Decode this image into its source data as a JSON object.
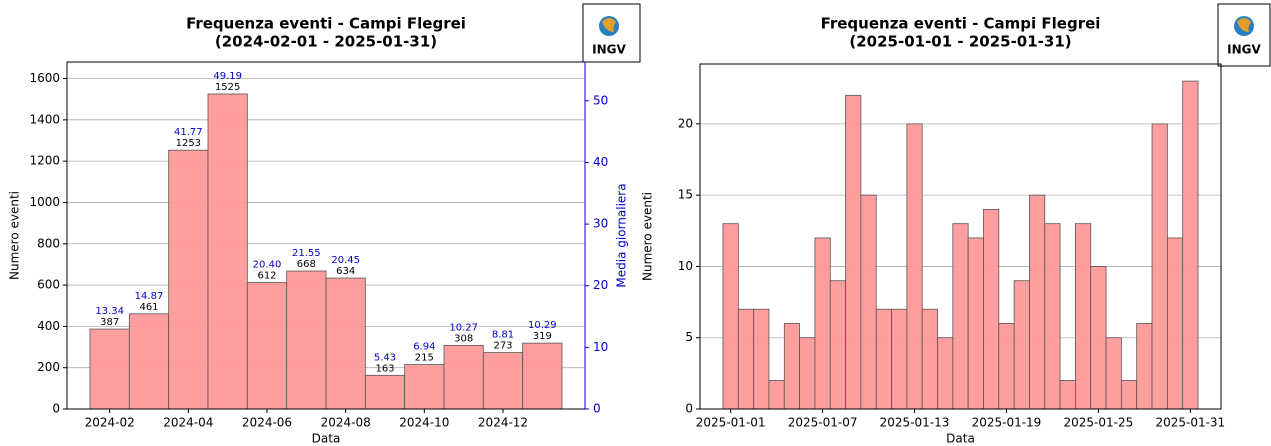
{
  "chart_data": [
    {
      "type": "bar",
      "title": [
        "Frequenza eventi - Campi Flegrei",
        "(2024-02-01 - 2025-01-31)"
      ],
      "logo_text": "INGV",
      "xlabel": "Data",
      "ylabel": "Numero eventi",
      "y2label": "Media giornaliera",
      "categories": [
        "2024-02",
        null,
        "2024-04",
        null,
        "2024-06",
        null,
        "2024-08",
        null,
        "2024-10",
        null,
        "2024-12",
        null
      ],
      "values": [
        387,
        461,
        1253,
        1525,
        612,
        668,
        634,
        163,
        215,
        308,
        273,
        319
      ],
      "daily_values": [
        13.34,
        14.87,
        41.77,
        49.19,
        20.4,
        21.55,
        20.45,
        5.43,
        6.94,
        10.27,
        8.81,
        10.29
      ],
      "daily_value_labels": [
        "13.34",
        "14.87",
        "41.77",
        "49.19",
        "20.40",
        "21.55",
        "20.45",
        "5.43",
        "6.94",
        "10.27",
        "8.81",
        "10.29"
      ],
      "color": "#ff9999",
      "label_color": "#0000cc",
      "ylim": [
        0,
        1680
      ],
      "yticks": [
        0,
        200,
        400,
        600,
        800,
        1000,
        1200,
        1400,
        1600
      ],
      "y2lim": [
        0,
        56.3
      ],
      "y2ticks": [
        0,
        10,
        20,
        30,
        40,
        50
      ],
      "grid": true
    },
    {
      "type": "bar",
      "title": [
        "Frequenza eventi - Campi Flegrei",
        "(2025-01-01 - 2025-01-31)"
      ],
      "logo_text": "INGV",
      "xlabel": "Data",
      "ylabel": "Numero eventi",
      "categories": [
        "2025-01-01",
        null,
        null,
        null,
        null,
        null,
        "2025-01-07",
        null,
        null,
        null,
        null,
        null,
        "2025-01-13",
        null,
        null,
        null,
        null,
        null,
        "2025-01-19",
        null,
        null,
        null,
        null,
        null,
        "2025-01-25",
        null,
        null,
        null,
        null,
        null,
        "2025-01-31"
      ],
      "values": [
        13,
        7,
        7,
        2,
        6,
        5,
        12,
        9,
        22,
        15,
        7,
        7,
        20,
        7,
        5,
        13,
        12,
        14,
        6,
        9,
        15,
        13,
        2,
        13,
        10,
        5,
        2,
        6,
        20,
        12,
        23
      ],
      "color": "#ff9999",
      "ylim": [
        0,
        24.2
      ],
      "yticks": [
        0,
        5,
        10,
        15,
        20
      ],
      "grid": true
    }
  ]
}
